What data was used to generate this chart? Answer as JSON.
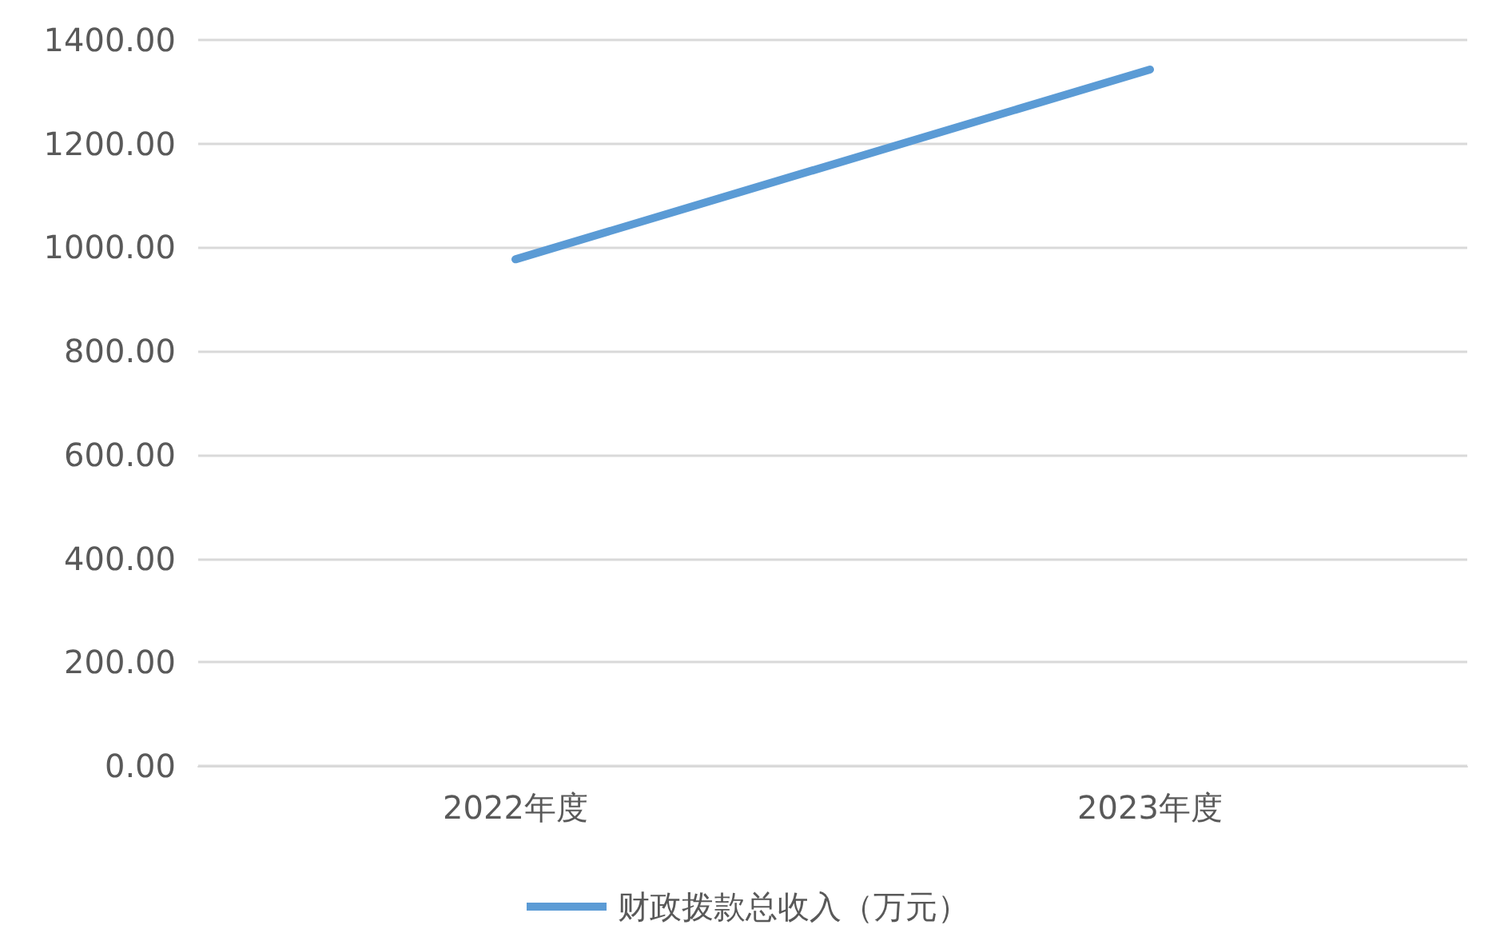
{
  "chart_data": {
    "type": "line",
    "categories": [
      "2022年度",
      "2023年度"
    ],
    "series": [
      {
        "name": "财政拨款总收入（万元）",
        "color": "#5b9bd5",
        "values": [
          977,
          1343
        ]
      }
    ],
    "ylim": [
      0,
      1400
    ],
    "yticks": [
      {
        "value": 0,
        "label": "0.00"
      },
      {
        "value": 200,
        "label": "200.00"
      },
      {
        "value": 400,
        "label": "400.00"
      },
      {
        "value": 600,
        "label": "600.00"
      },
      {
        "value": 800,
        "label": "800.00"
      },
      {
        "value": 1000,
        "label": "1000.00"
      },
      {
        "value": 1200,
        "label": "1200.00"
      },
      {
        "value": 1400,
        "label": "1400.00"
      }
    ],
    "grid": "y",
    "legend": "bottom",
    "marker": "none",
    "line_style": "solid"
  }
}
